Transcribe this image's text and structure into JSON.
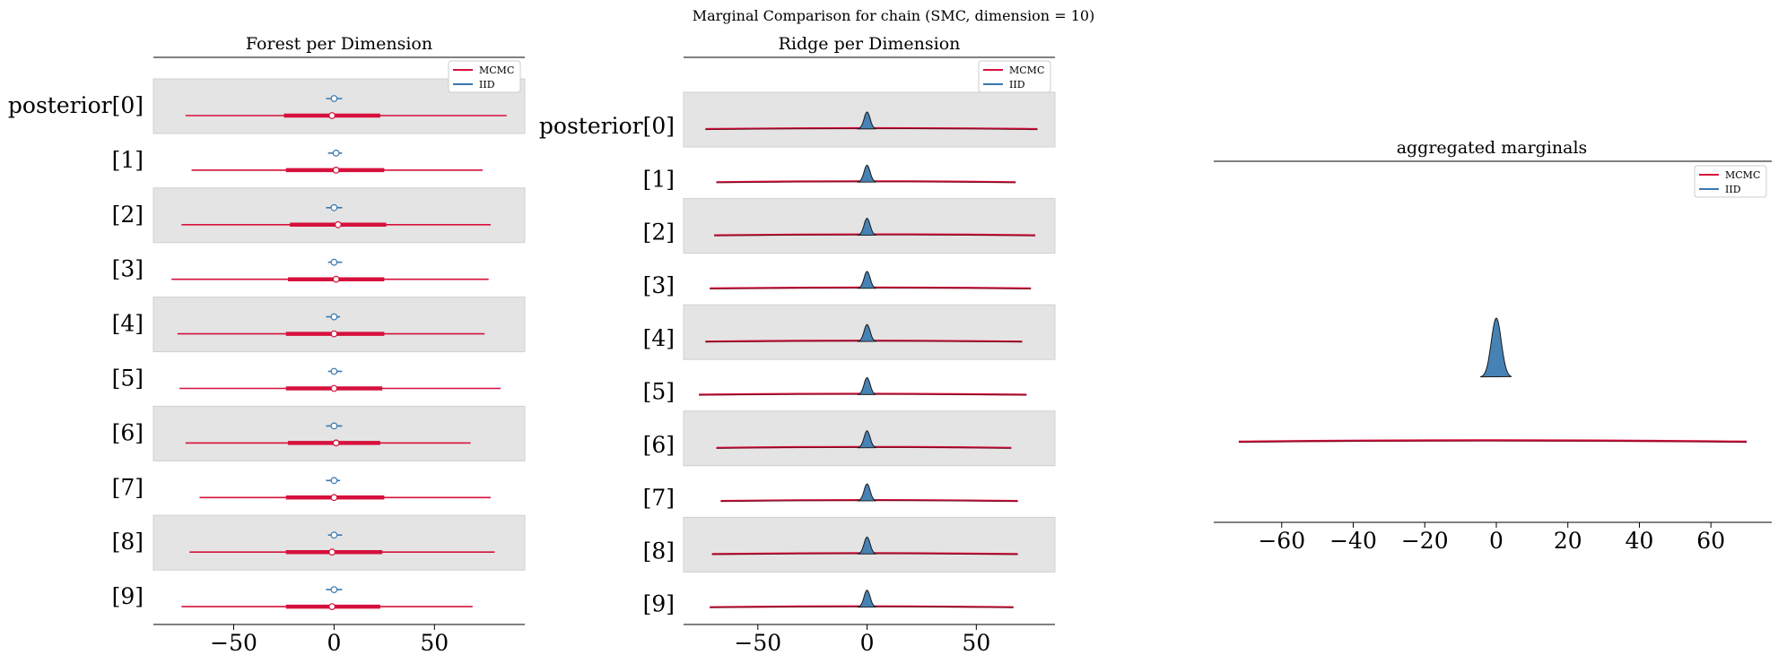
{
  "suptitle": "Marginal Comparison for chain (SMC, dimension = 10)",
  "colors": {
    "mcmc": "#d6103c",
    "iid": "#3a78b0",
    "iid_fill": "#4682b4",
    "band": "#e4e4e4"
  },
  "chart_data": [
    {
      "type": "forest",
      "title": "Forest per Dimension",
      "row_labels": [
        "posterior[0]",
        "[1]",
        "[2]",
        "[3]",
        "[4]",
        "[5]",
        "[6]",
        "[7]",
        "[8]",
        "[9]"
      ],
      "xticks": [
        -50,
        0,
        50
      ],
      "xlim": [
        -90,
        95
      ],
      "legend": {
        "placement": "top-right",
        "entries": [
          "MCMC",
          "IID"
        ]
      },
      "series": [
        {
          "name": "MCMC",
          "hdi": [
            [
              -74,
              86
            ],
            [
              -71,
              74
            ],
            [
              -76,
              78
            ],
            [
              -81,
              77
            ],
            [
              -78,
              75
            ],
            [
              -77,
              83
            ],
            [
              -74,
              68
            ],
            [
              -67,
              78
            ],
            [
              -72,
              80
            ],
            [
              -76,
              69
            ]
          ],
          "iqr": [
            [
              -25,
              23
            ],
            [
              -24,
              25
            ],
            [
              -22,
              26
            ],
            [
              -23,
              25
            ],
            [
              -24,
              25
            ],
            [
              -24,
              24
            ],
            [
              -23,
              23
            ],
            [
              -24,
              25
            ],
            [
              -24,
              24
            ],
            [
              -24,
              23
            ]
          ],
          "median": [
            -1,
            1,
            2,
            1,
            0,
            0,
            1,
            0,
            -1,
            -1
          ]
        },
        {
          "name": "IID",
          "hdi": [
            [
              -4,
              4
            ],
            [
              -3,
              4
            ],
            [
              -4,
              4
            ],
            [
              -3,
              4
            ],
            [
              -4,
              3
            ],
            [
              -3,
              4
            ],
            [
              -4,
              4
            ],
            [
              -4,
              3
            ],
            [
              -3,
              4
            ],
            [
              -4,
              4
            ]
          ],
          "median": [
            0,
            1,
            0,
            0,
            0,
            0,
            0,
            0,
            0,
            0
          ]
        }
      ]
    },
    {
      "type": "ridge",
      "title": "Ridge per Dimension",
      "row_labels": [
        "posterior[0]",
        "[1]",
        "[2]",
        "[3]",
        "[4]",
        "[5]",
        "[6]",
        "[7]",
        "[8]",
        "[9]"
      ],
      "xticks": [
        -50,
        0,
        50
      ],
      "xlim": [
        -84,
        86
      ],
      "legend": {
        "placement": "top-right",
        "entries": [
          "MCMC",
          "IID"
        ]
      },
      "series": [
        {
          "name": "MCMC",
          "ranges": [
            [
              -74,
              78
            ],
            [
              -69,
              68
            ],
            [
              -70,
              77
            ],
            [
              -72,
              75
            ],
            [
              -74,
              71
            ],
            [
              -77,
              73
            ],
            [
              -69,
              66
            ],
            [
              -67,
              69
            ],
            [
              -71,
              69
            ],
            [
              -72,
              67
            ]
          ]
        },
        {
          "name": "IID",
          "center": [
            0,
            0,
            0,
            0,
            0,
            0,
            0,
            0,
            0,
            0
          ],
          "sigma": 1.4
        }
      ]
    },
    {
      "type": "density",
      "title": "aggregated marginals",
      "xticks": [
        -60,
        -40,
        -20,
        0,
        20,
        40,
        60
      ],
      "xlim": [
        -79,
        77
      ],
      "legend": {
        "placement": "top-right",
        "entries": [
          "MCMC",
          "IID"
        ]
      },
      "series": [
        {
          "name": "MCMC",
          "range": [
            -72,
            70
          ]
        },
        {
          "name": "IID",
          "center": 0,
          "sigma": 1.4
        }
      ]
    }
  ]
}
